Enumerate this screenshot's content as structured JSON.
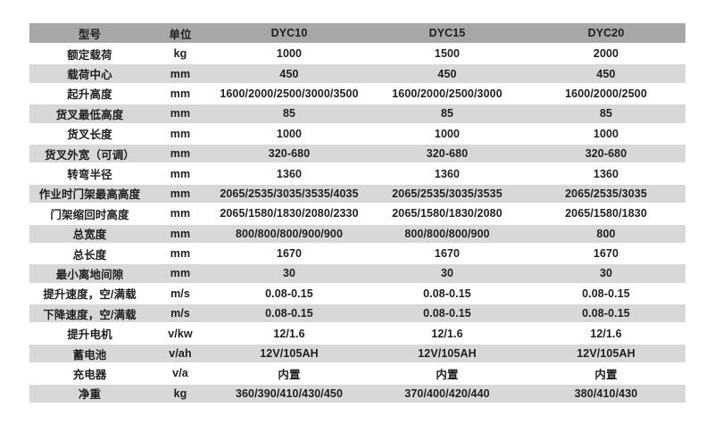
{
  "colors": {
    "header_bg": "#a7a7a7",
    "stripe_bg": "#d8d8d8",
    "row_bg": "#ffffff",
    "text": "#1f1f1f"
  },
  "chart_data": {
    "type": "table",
    "columns": [
      "型号",
      "单位",
      "DYC10",
      "DYC15",
      "DYC20"
    ],
    "rows": [
      [
        "额定载荷",
        "kg",
        "1000",
        "1500",
        "2000"
      ],
      [
        "载荷中心",
        "mm",
        "450",
        "450",
        "450"
      ],
      [
        "起升高度",
        "mm",
        "1600/2000/2500/3000/3500",
        "1600/2000/2500/3000",
        "1600/2000/2500"
      ],
      [
        "货叉最低高度",
        "mm",
        "85",
        "85",
        "85"
      ],
      [
        "货叉长度",
        "mm",
        "1000",
        "1000",
        "1000"
      ],
      [
        "货叉外宽（可调）",
        "mm",
        "320-680",
        "320-680",
        "320-680"
      ],
      [
        "转弯半径",
        "mm",
        "1360",
        "1360",
        "1360"
      ],
      [
        "作业时门架最高高度",
        "mm",
        "2065/2535/3035/3535/4035",
        "2065/2535/3035/3535",
        "2065/2535/3035"
      ],
      [
        "门架缩回时高度",
        "mm",
        "2065/1580/1830/2080/2330",
        "2065/1580/1830/2080",
        "2065/1580/1830"
      ],
      [
        "总宽度",
        "mm",
        "800/800/800/900/900",
        "800/800/800/900",
        "800"
      ],
      [
        "总长度",
        "mm",
        "1670",
        "1670",
        "1670"
      ],
      [
        "最小离地间隙",
        "mm",
        "30",
        "30",
        "30"
      ],
      [
        "提升速度，空/满载",
        "m/s",
        "0.08-0.15",
        "0.08-0.15",
        "0.08-0.15"
      ],
      [
        "下降速度，空/满载",
        "m/s",
        "0.08-0.15",
        "0.08-0.15",
        "0.08-0.15"
      ],
      [
        "提升电机",
        "v/kw",
        "12/1.6",
        "12/1.6",
        "12/1.6"
      ],
      [
        "蓄电池",
        "v/ah",
        "12V/105AH",
        "12V/105AH",
        "12V/105AH"
      ],
      [
        "充电器",
        "v/a",
        "内置",
        "内置",
        "内置"
      ],
      [
        "净重",
        "kg",
        "360/390/410/430/450",
        "370/400/420/440",
        "380/410/430"
      ]
    ]
  }
}
